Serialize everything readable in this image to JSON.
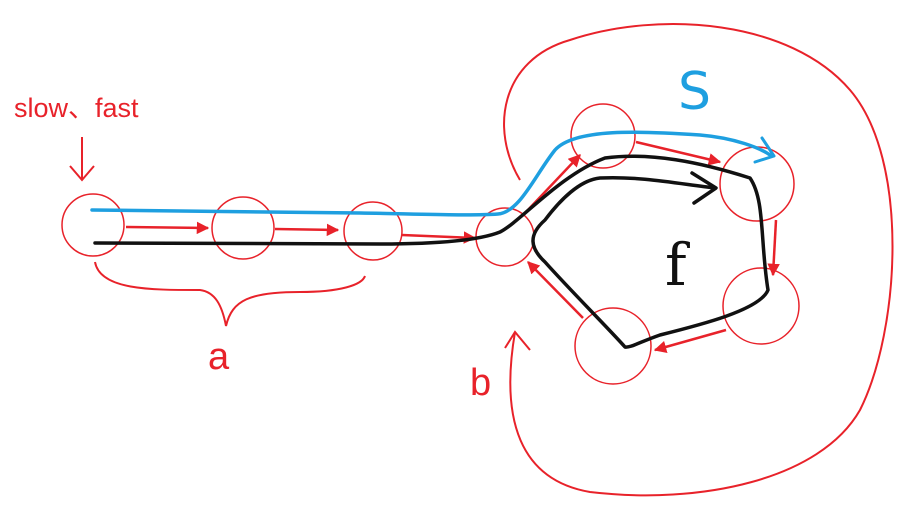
{
  "labels": {
    "start": "slow、fast",
    "a": "a",
    "b": "b",
    "s": "S",
    "f": "f"
  },
  "colors": {
    "ink_red": "#e8222a",
    "ink_blue": "#1e9fe0",
    "ink_black": "#111111",
    "background": "#ffffff"
  }
}
